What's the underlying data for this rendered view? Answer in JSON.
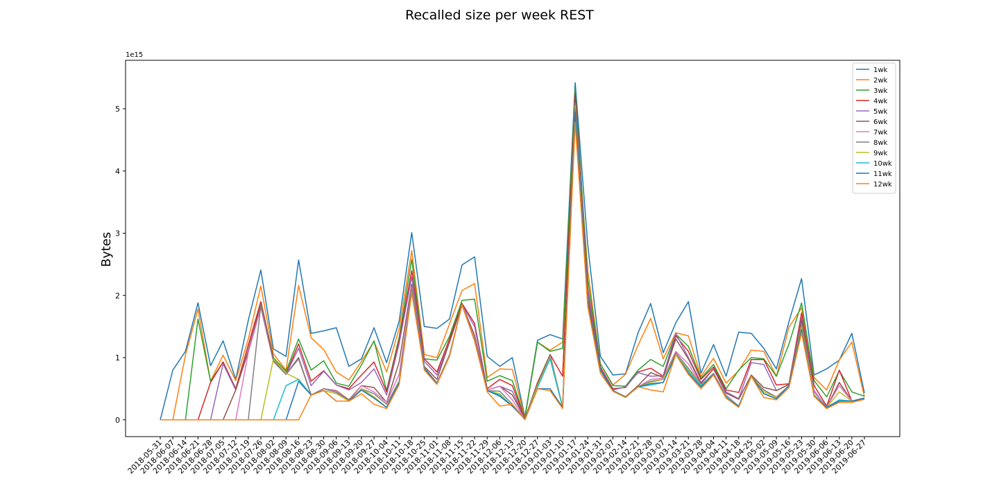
{
  "chart_data": {
    "type": "line",
    "title": "Recalled size per week REST",
    "xlabel": "",
    "ylabel": "Bytes",
    "y_scale_label": "1e15",
    "y_unit_multiplier": 1000000000000000.0,
    "ylim": [
      -0.27,
      5.78
    ],
    "y_ticks": [
      0,
      1,
      2,
      3,
      4,
      5
    ],
    "grid": false,
    "legend_position": "top-right",
    "categories": [
      "2018-05-31",
      "2018-06-07",
      "2018-06-14",
      "2018-06-21",
      "2018-06-28",
      "2018-07-05",
      "2018-07-12",
      "2018-07-19",
      "2018-07-26",
      "2018-08-02",
      "2018-08-09",
      "2018-08-16",
      "2018-08-23",
      "2018-08-30",
      "2018-09-06",
      "2018-09-13",
      "2018-09-20",
      "2018-09-27",
      "2018-10-04",
      "2018-10-11",
      "2018-10-18",
      "2018-10-25",
      "2018-11-01",
      "2018-11-08",
      "2018-11-15",
      "2018-11-22",
      "2018-11-29",
      "2018-12-06",
      "2018-12-13",
      "2018-12-20",
      "2018-12-27",
      "2019-01-03",
      "2019-01-10",
      "2019-01-17",
      "2019-01-24",
      "2019-01-31",
      "2019-02-07",
      "2019-02-14",
      "2019-02-21",
      "2019-02-28",
      "2019-03-07",
      "2019-03-14",
      "2019-03-21",
      "2019-03-28",
      "2019-04-04",
      "2019-04-11",
      "2019-04-18",
      "2019-04-25",
      "2019-05-02",
      "2019-05-09",
      "2019-05-16",
      "2019-05-23",
      "2019-05-30",
      "2019-06-06",
      "2019-06-13",
      "2019-06-20",
      "2019-06-27"
    ],
    "series": [
      {
        "name": "1wk",
        "color": "#1f77b4",
        "values": [
          0,
          0.8,
          1.1,
          1.88,
          0.87,
          1.27,
          0.65,
          1.6,
          2.41,
          1.14,
          1.02,
          2.57,
          1.39,
          1.43,
          1.48,
          0.86,
          0.98,
          1.48,
          0.92,
          1.59,
          3.01,
          1.5,
          1.47,
          1.62,
          2.49,
          2.62,
          1.02,
          0.86,
          1.0,
          0.05,
          1.28,
          1.37,
          1.3,
          5.42,
          2.8,
          1.02,
          0.72,
          0.74,
          1.4,
          1.87,
          1.08,
          1.56,
          1.9,
          0.75,
          1.21,
          0.7,
          1.41,
          1.39,
          1.15,
          0.82,
          1.58,
          2.27,
          0.72,
          0.82,
          0.96,
          1.39,
          0.43
        ]
      },
      {
        "name": "2wk",
        "color": "#ff7f0e",
        "values": [
          0,
          0,
          1.04,
          1.78,
          0.62,
          1.04,
          0.63,
          1.3,
          2.15,
          1.06,
          0.8,
          2.16,
          1.32,
          1.13,
          0.77,
          0.64,
          0.94,
          1.26,
          0.77,
          1.47,
          2.72,
          1.05,
          1.0,
          1.54,
          2.08,
          2.19,
          0.68,
          0.82,
          0.81,
          0.04,
          1.25,
          1.12,
          1.25,
          5.05,
          2.4,
          0.9,
          0.56,
          0.73,
          1.2,
          1.63,
          0.98,
          1.4,
          1.35,
          0.7,
          0.99,
          0.59,
          0.79,
          1.12,
          1.1,
          0.7,
          1.49,
          1.8,
          0.68,
          0.48,
          0.96,
          1.25,
          0.37
        ]
      },
      {
        "name": "3wk",
        "color": "#2ca02c",
        "values": [
          0,
          0,
          0,
          1.62,
          0.62,
          0.93,
          0.5,
          1.2,
          1.9,
          1.0,
          0.78,
          1.3,
          0.8,
          0.95,
          0.59,
          0.54,
          0.88,
          1.27,
          0.47,
          1.33,
          2.58,
          0.98,
          0.96,
          1.34,
          1.92,
          1.94,
          0.62,
          0.71,
          0.63,
          0.03,
          1.25,
          1.1,
          1.15,
          5.32,
          2.25,
          0.9,
          0.55,
          0.54,
          0.8,
          0.97,
          0.86,
          1.38,
          1.18,
          0.67,
          0.89,
          0.5,
          0.8,
          1.0,
          0.98,
          0.7,
          1.22,
          1.88,
          0.63,
          0.37,
          0.79,
          0.45,
          0.38
        ]
      },
      {
        "name": "4wk",
        "color": "#d62728",
        "values": [
          0,
          0,
          0,
          0,
          0.6,
          0.93,
          0.5,
          1.2,
          1.9,
          0.98,
          0.74,
          1.22,
          0.62,
          0.79,
          0.56,
          0.5,
          0.72,
          0.93,
          0.45,
          1.28,
          2.4,
          0.98,
          0.77,
          1.3,
          1.87,
          1.55,
          0.5,
          0.65,
          0.55,
          0.02,
          0.6,
          1.05,
          0.7,
          5.23,
          2.1,
          0.85,
          0.5,
          0.52,
          0.77,
          0.83,
          0.7,
          1.35,
          1.1,
          0.65,
          0.85,
          0.48,
          0.44,
          0.97,
          0.97,
          0.56,
          0.58,
          1.72,
          0.55,
          0.22,
          0.8,
          0.3,
          0.33
        ]
      },
      {
        "name": "5wk",
        "color": "#9467bd",
        "values": [
          0,
          0,
          0,
          0,
          0,
          0.9,
          0.48,
          1.12,
          1.85,
          0.95,
          0.73,
          1.15,
          0.55,
          0.78,
          0.56,
          0.48,
          0.6,
          0.82,
          0.4,
          1.23,
          2.3,
          0.94,
          0.72,
          1.25,
          1.85,
          1.5,
          0.48,
          0.54,
          0.46,
          0.02,
          0.58,
          1.05,
          0.2,
          5.1,
          2.05,
          0.82,
          0.48,
          0.53,
          0.76,
          0.7,
          0.71,
          1.39,
          1.0,
          0.6,
          0.82,
          0.45,
          0.34,
          0.92,
          0.89,
          0.47,
          0.57,
          1.65,
          0.47,
          0.2,
          0.6,
          0.3,
          0.35
        ]
      },
      {
        "name": "6wk",
        "color": "#8c564b",
        "values": [
          0,
          0,
          0,
          0,
          0,
          0,
          0.48,
          1.1,
          1.85,
          0.94,
          0.73,
          1.0,
          0.4,
          0.5,
          0.47,
          0.32,
          0.55,
          0.52,
          0.28,
          0.93,
          2.18,
          0.86,
          0.65,
          1.25,
          1.85,
          1.36,
          0.48,
          0.54,
          0.4,
          0.02,
          0.58,
          1.05,
          0.2,
          5.05,
          1.95,
          0.8,
          0.47,
          0.37,
          0.55,
          0.76,
          0.68,
          1.3,
          0.98,
          0.58,
          0.82,
          0.43,
          0.33,
          0.72,
          0.52,
          0.47,
          0.57,
          1.6,
          0.45,
          0.2,
          0.6,
          0.3,
          0.35
        ]
      },
      {
        "name": "7wk",
        "color": "#e377c2",
        "values": [
          0,
          0,
          0,
          0,
          0,
          0,
          0,
          1.08,
          1.8,
          0.94,
          0.73,
          0.98,
          0.4,
          0.5,
          0.46,
          0.3,
          0.55,
          0.45,
          0.28,
          0.73,
          2.13,
          0.84,
          0.6,
          1.05,
          1.85,
          1.3,
          0.48,
          0.54,
          0.32,
          0.01,
          0.55,
          1.03,
          0.2,
          5.05,
          1.85,
          0.8,
          0.47,
          0.37,
          0.53,
          0.65,
          0.67,
          1.1,
          0.9,
          0.56,
          0.75,
          0.4,
          0.22,
          0.7,
          0.48,
          0.37,
          0.55,
          1.52,
          0.45,
          0.2,
          0.55,
          0.3,
          0.35
        ]
      },
      {
        "name": "8wk",
        "color": "#7f7f7f",
        "values": [
          0,
          0,
          0,
          0,
          0,
          0,
          0,
          0,
          1.85,
          0.94,
          0.73,
          0.98,
          0.4,
          0.5,
          0.44,
          0.3,
          0.5,
          0.42,
          0.25,
          0.62,
          2.1,
          0.84,
          0.58,
          1.04,
          1.85,
          1.28,
          0.47,
          0.46,
          0.25,
          0.01,
          0.55,
          1.02,
          0.2,
          5.05,
          1.85,
          0.8,
          0.47,
          0.37,
          0.53,
          0.62,
          0.65,
          1.08,
          0.83,
          0.56,
          0.74,
          0.38,
          0.22,
          0.7,
          0.48,
          0.36,
          0.55,
          1.52,
          0.4,
          0.2,
          0.32,
          0.3,
          0.35
        ]
      },
      {
        "name": "9wk",
        "color": "#bcbd22",
        "values": [
          0,
          0,
          0,
          0,
          0,
          0,
          0,
          0,
          0,
          0.98,
          0.75,
          0.65,
          0.4,
          0.47,
          0.42,
          0.3,
          0.5,
          0.37,
          0.2,
          0.6,
          2.08,
          0.84,
          0.58,
          1.03,
          1.85,
          1.27,
          0.47,
          0.42,
          0.22,
          0.01,
          0.55,
          1.0,
          0.2,
          5.05,
          1.85,
          0.8,
          0.47,
          0.37,
          0.53,
          0.6,
          0.65,
          1.05,
          0.8,
          0.56,
          0.73,
          0.37,
          0.22,
          0.7,
          0.45,
          0.36,
          0.55,
          1.5,
          0.4,
          0.2,
          0.45,
          0.3,
          0.35
        ]
      },
      {
        "name": "10wk",
        "color": "#17becf",
        "values": [
          0,
          0,
          0,
          0,
          0,
          0,
          0,
          0,
          0,
          0,
          0.55,
          0.65,
          0.4,
          0.47,
          0.3,
          0.3,
          0.48,
          0.35,
          0.2,
          0.6,
          2.08,
          0.84,
          0.58,
          1.03,
          1.85,
          1.27,
          0.47,
          0.4,
          0.22,
          0.01,
          0.52,
          0.98,
          0.2,
          5.0,
          1.85,
          0.8,
          0.47,
          0.37,
          0.53,
          0.56,
          0.6,
          1.05,
          0.78,
          0.55,
          0.73,
          0.37,
          0.22,
          0.7,
          0.42,
          0.34,
          0.55,
          1.45,
          0.4,
          0.2,
          0.32,
          0.3,
          0.35
        ]
      },
      {
        "name": "11wk",
        "color": "#1f77b4",
        "values": [
          0,
          0,
          0,
          0,
          0,
          0,
          0,
          0,
          0,
          0,
          0,
          0.62,
          0.4,
          0.47,
          0.3,
          0.3,
          0.48,
          0.35,
          0.2,
          0.6,
          2.05,
          0.83,
          0.58,
          1.02,
          1.85,
          1.27,
          0.47,
          0.38,
          0.22,
          0.01,
          0.5,
          0.5,
          0.2,
          4.95,
          1.85,
          0.8,
          0.47,
          0.37,
          0.53,
          0.58,
          0.6,
          1.05,
          0.75,
          0.53,
          0.73,
          0.35,
          0.22,
          0.7,
          0.42,
          0.34,
          0.55,
          1.45,
          0.38,
          0.2,
          0.3,
          0.3,
          0.35
        ]
      },
      {
        "name": "12wk",
        "color": "#ff7f0e",
        "values": [
          0,
          0,
          0,
          0,
          0,
          0,
          0,
          0,
          0,
          0,
          0,
          0,
          0.4,
          0.47,
          0.3,
          0.3,
          0.42,
          0.25,
          0.18,
          0.57,
          2.05,
          0.8,
          0.57,
          1.02,
          1.85,
          1.27,
          0.45,
          0.22,
          0.25,
          0,
          0.5,
          0.47,
          0.18,
          4.78,
          1.82,
          0.75,
          0.46,
          0.36,
          0.53,
          0.48,
          0.45,
          1.05,
          0.73,
          0.5,
          0.72,
          0.35,
          0.2,
          0.7,
          0.36,
          0.32,
          0.52,
          1.4,
          0.38,
          0.18,
          0.28,
          0.28,
          0.33
        ]
      }
    ]
  }
}
